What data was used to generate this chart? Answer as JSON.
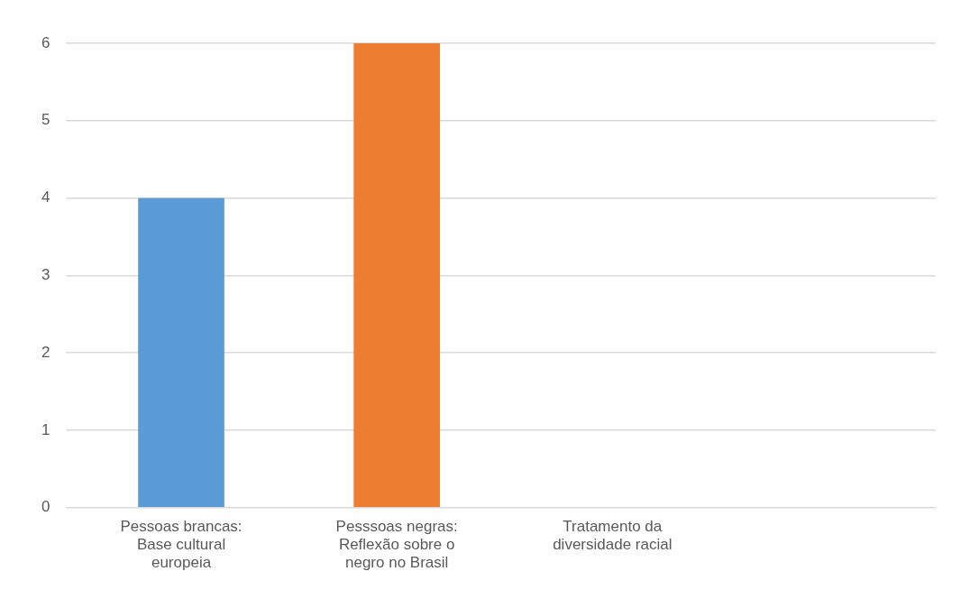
{
  "chart_data": {
    "type": "bar",
    "categories": [
      "Pessoas brancas: Base cultural europeia",
      "Pesssoas negras: Reflexão sobre o negro no Brasil",
      "Tratamento da diversidade racial",
      null
    ],
    "values": [
      4,
      6,
      0,
      null
    ],
    "colors": [
      "#5b9bd5",
      "#ed7d31",
      "#7f7f7f",
      "#a5a5a5"
    ],
    "ylim": [
      0,
      6
    ],
    "yticks": [
      0,
      1,
      2,
      3,
      4,
      5,
      6
    ],
    "grid": "y",
    "legend": false
  }
}
